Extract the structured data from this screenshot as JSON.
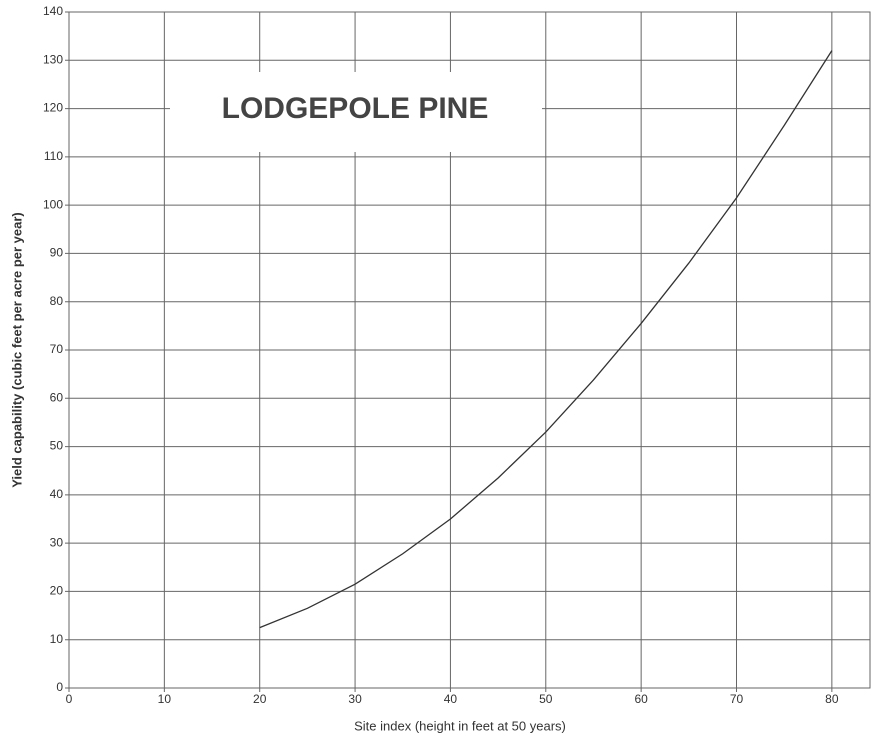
{
  "chart_data": {
    "type": "line",
    "title": "LODGEPOLE PINE",
    "x_label": "Site index (height in feet at 50 years)",
    "y_label": "Yield capability (cubic feet per acre per year)",
    "x": [
      20,
      25,
      30,
      35,
      40,
      45,
      50,
      55,
      60,
      65,
      70,
      75,
      80
    ],
    "series": [
      {
        "name": "Lodgepole pine",
        "color": "#333333",
        "values": [
          12.5,
          16.5,
          21.5,
          27.8,
          35,
          43.5,
          53,
          63.8,
          75.5,
          88,
          101.5,
          116.5,
          132
        ]
      }
    ],
    "xlim": [
      0,
      84
    ],
    "ylim": [
      0,
      140
    ],
    "xticks": [
      0,
      10,
      20,
      30,
      40,
      50,
      60,
      70,
      80
    ],
    "yticks": [
      0,
      10,
      20,
      30,
      40,
      50,
      60,
      70,
      80,
      90,
      100,
      110,
      120,
      130,
      140
    ],
    "grid": true
  }
}
